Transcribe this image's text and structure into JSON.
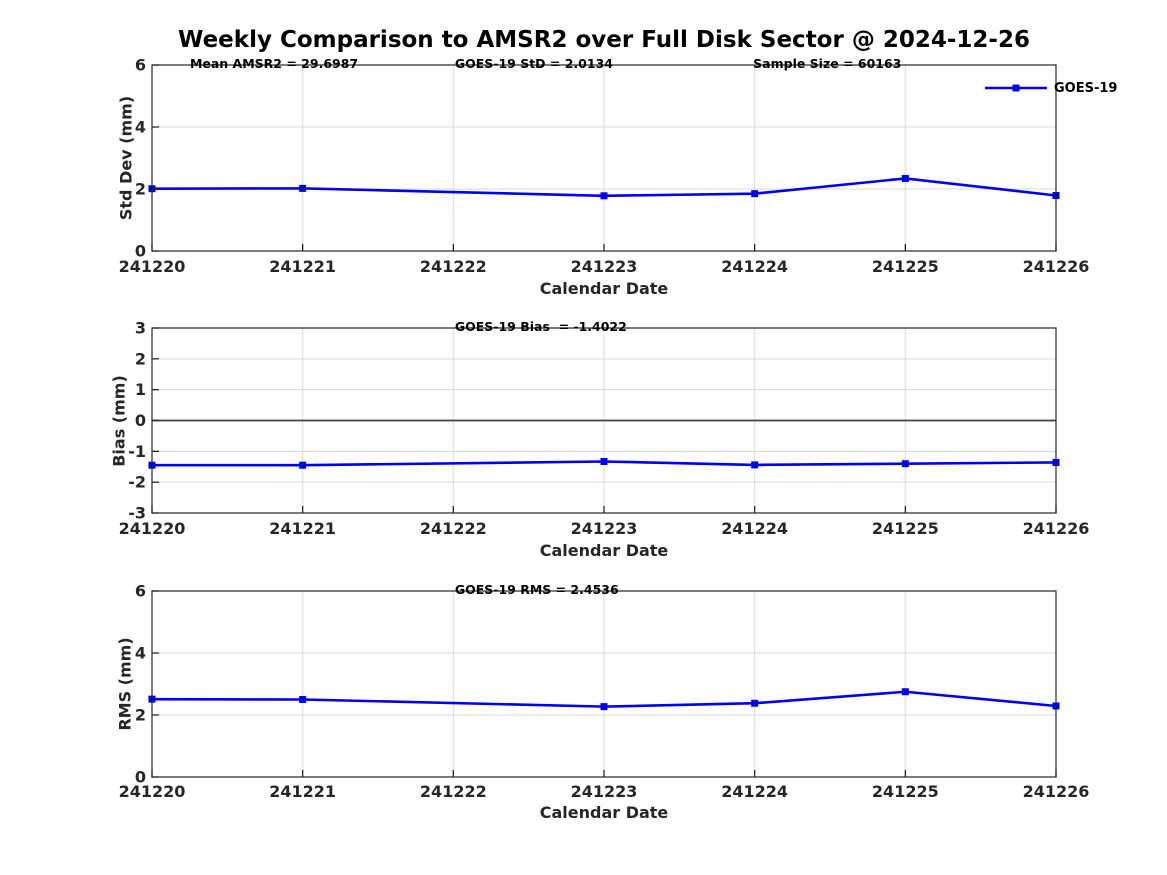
{
  "title": "Weekly Comparison to AMSR2 over Full Disk Sector @ 2024-12-26",
  "colors": {
    "series": "#0000EE",
    "grid": "#D9D9D9",
    "axis": "#262626",
    "zero_line": "#404040",
    "tick_text": "#262626"
  },
  "legend": {
    "label": "GOES-19"
  },
  "chart_data": [
    {
      "type": "line",
      "ylabel": "Std Dev (mm)",
      "xlabel": "Calendar Date",
      "ylim": [
        0,
        6
      ],
      "yticks": [
        0,
        2,
        4,
        6
      ],
      "xticks": [
        "241220",
        "241221",
        "241222",
        "241223",
        "241224",
        "241225",
        "241226"
      ],
      "annotations": [
        {
          "text": "Mean AMSR2 = 29.6987",
          "xfrac": 0.042
        },
        {
          "text": "GOES-19 StD = 2.0134",
          "xfrac": 0.335
        },
        {
          "text": "Sample Size = 60163",
          "xfrac": 0.665
        }
      ],
      "zero_line": false,
      "legend": true,
      "grid": true,
      "series": [
        {
          "name": "GOES-19",
          "x": [
            241220,
            241221,
            241223,
            241224,
            241225,
            241226
          ],
          "y": [
            2.01,
            2.02,
            1.78,
            1.85,
            2.34,
            1.79
          ]
        }
      ]
    },
    {
      "type": "line",
      "ylabel": "Bias (mm)",
      "xlabel": "Calendar Date",
      "ylim": [
        -3,
        3
      ],
      "yticks": [
        -3,
        -2,
        -1,
        0,
        1,
        2,
        3
      ],
      "xticks": [
        "241220",
        "241221",
        "241222",
        "241223",
        "241224",
        "241225",
        "241226"
      ],
      "annotations": [
        {
          "text": "GOES-19 Bias  = -1.4022",
          "xfrac": 0.335
        }
      ],
      "zero_line": true,
      "legend": false,
      "grid": true,
      "series": [
        {
          "name": "GOES-19",
          "x": [
            241220,
            241221,
            241223,
            241224,
            241225,
            241226
          ],
          "y": [
            -1.45,
            -1.45,
            -1.33,
            -1.44,
            -1.4,
            -1.36
          ]
        }
      ]
    },
    {
      "type": "line",
      "ylabel": "RMS (mm)",
      "xlabel": "Calendar Date",
      "ylim": [
        0,
        6
      ],
      "yticks": [
        0,
        2,
        4,
        6
      ],
      "xticks": [
        "241220",
        "241221",
        "241222",
        "241223",
        "241224",
        "241225",
        "241226"
      ],
      "annotations": [
        {
          "text": "GOES-19 RMS = 2.4536",
          "xfrac": 0.335
        }
      ],
      "zero_line": false,
      "legend": false,
      "grid": true,
      "series": [
        {
          "name": "GOES-19",
          "x": [
            241220,
            241221,
            241223,
            241224,
            241225,
            241226
          ],
          "y": [
            2.51,
            2.5,
            2.27,
            2.38,
            2.75,
            2.29
          ]
        }
      ]
    }
  ]
}
